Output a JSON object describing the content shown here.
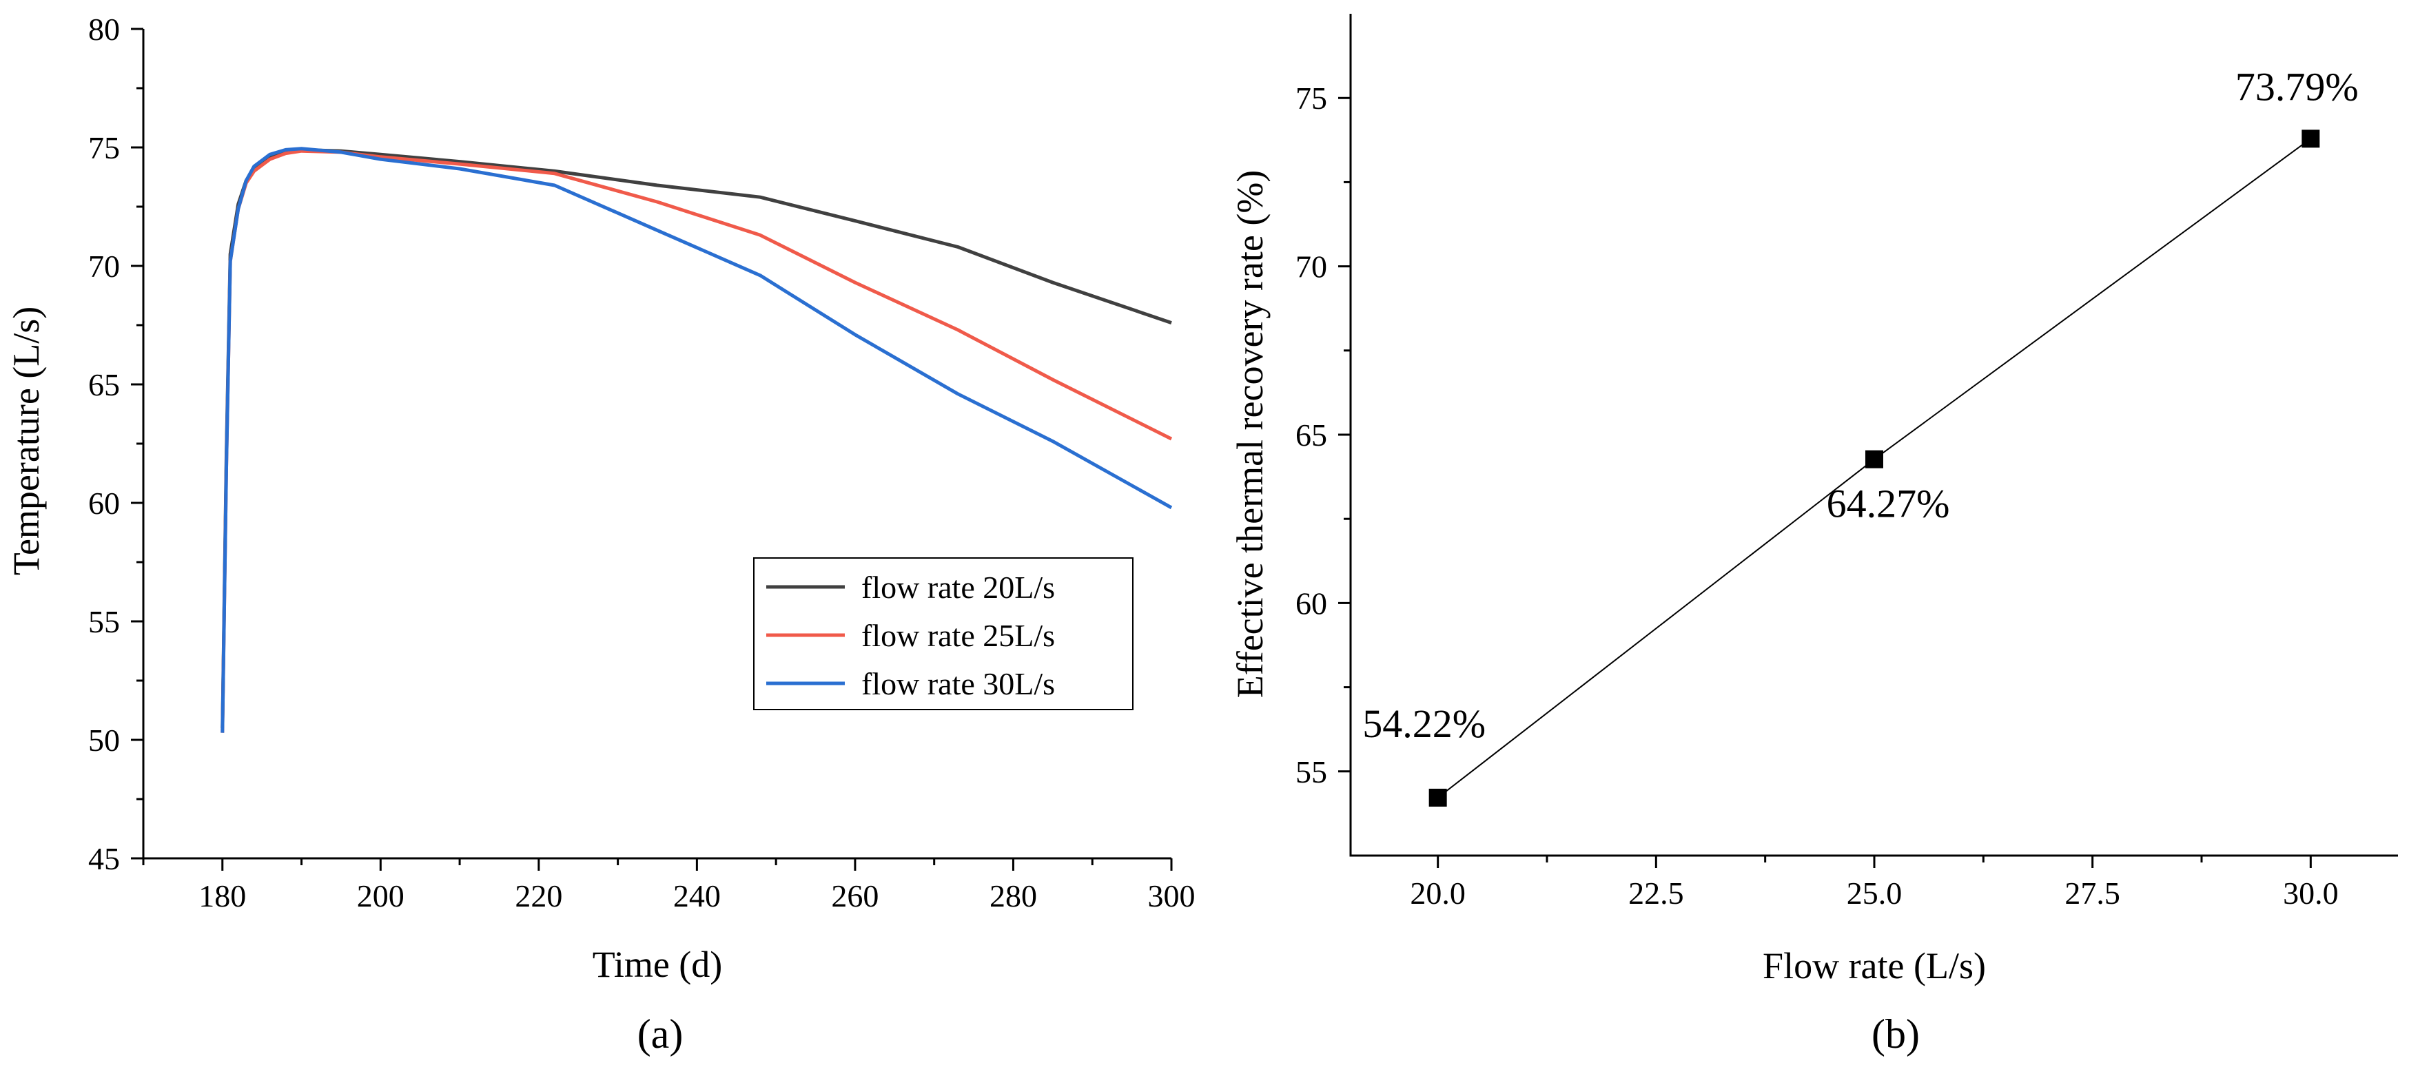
{
  "chart_data": [
    {
      "type": "line",
      "panel_label": "(a)",
      "xlabel": "Time (d)",
      "ylabel": "Temperature (L/s)",
      "xlim": [
        170,
        300
      ],
      "ylim": [
        45,
        80
      ],
      "xticks": [
        180,
        200,
        220,
        240,
        260,
        280,
        300
      ],
      "yticks": [
        45,
        50,
        55,
        60,
        65,
        70,
        75,
        80
      ],
      "legend_position": "lower-right",
      "series": [
        {
          "name": "flow rate 20L/s",
          "color": "#404040",
          "x": [
            180,
            180.5,
            181,
            182,
            183,
            184,
            186,
            188,
            190,
            195,
            200,
            210,
            222,
            235,
            248,
            260,
            273,
            285,
            300
          ],
          "y": [
            50.5,
            62,
            70.5,
            72.6,
            73.6,
            74.1,
            74.6,
            74.8,
            74.9,
            74.85,
            74.7,
            74.4,
            74.0,
            73.4,
            72.9,
            71.9,
            70.8,
            69.3,
            67.6
          ]
        },
        {
          "name": "flow rate 25L/s",
          "color": "#f05a4a",
          "x": [
            180,
            180.5,
            181,
            182,
            183,
            184,
            186,
            188,
            190,
            195,
            200,
            210,
            222,
            235,
            248,
            260,
            273,
            285,
            300
          ],
          "y": [
            50.3,
            61.5,
            70.2,
            72.4,
            73.5,
            74.0,
            74.5,
            74.75,
            74.85,
            74.8,
            74.6,
            74.3,
            73.9,
            72.7,
            71.3,
            69.3,
            67.3,
            65.2,
            62.7
          ]
        },
        {
          "name": "flow rate 30L/s",
          "color": "#2a6fd1",
          "x": [
            180,
            180.5,
            181,
            182,
            183,
            184,
            186,
            188,
            190,
            195,
            200,
            210,
            222,
            235,
            248,
            260,
            273,
            285,
            300
          ],
          "y": [
            50.3,
            61.5,
            70.2,
            72.4,
            73.6,
            74.2,
            74.7,
            74.9,
            74.95,
            74.8,
            74.5,
            74.1,
            73.4,
            71.5,
            69.6,
            67.1,
            64.6,
            62.6,
            59.8
          ]
        }
      ]
    },
    {
      "type": "line",
      "panel_label": "(b)",
      "xlabel": "Flow rate (L/s)",
      "ylabel": "Effective thermal recovery rate (%)",
      "xlim": [
        19.0,
        31.0
      ],
      "ylim": [
        52.5,
        77.5
      ],
      "xticks": [
        "20.0",
        "22.5",
        "25.0",
        "27.5",
        "30.0"
      ],
      "yticks": [
        "55",
        "60",
        "65",
        "70",
        "75"
      ],
      "series": [
        {
          "name": "Effective thermal recovery rate",
          "color": "#000000",
          "marker": "square",
          "x": [
            20,
            25,
            30
          ],
          "y": [
            54.22,
            64.27,
            73.79
          ],
          "labels": [
            "54.22%",
            "64.27%",
            "73.79%"
          ]
        }
      ]
    }
  ]
}
